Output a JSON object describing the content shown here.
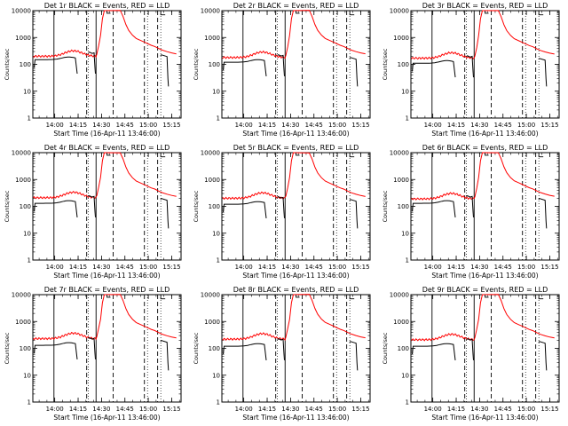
{
  "chart_data": [
    {
      "type": "line",
      "title": "Det 1r BLACK = Events, RED = LLD",
      "ylabel": "Counts/sec",
      "xlabel": "Start Time (16-Apr-11 13:46:00)",
      "red_base": 200,
      "black_base": 150,
      "black_gap": [
        14.25,
        14.45
      ],
      "ylim": [
        1,
        10000
      ],
      "yscale": "log",
      "xtick_labels": [
        "14:00",
        "14:15",
        "14:30",
        "14:45",
        "15:00",
        "15:15"
      ],
      "ytick_labels": [
        "1",
        "10",
        "100",
        "1000",
        "10000"
      ],
      "series": [
        {
          "name": "Events",
          "color": "#000000"
        },
        {
          "name": "LLD",
          "color": "#ff0000"
        }
      ]
    },
    {
      "type": "line",
      "title": "Det 2r BLACK = Events, RED = LLD",
      "ylabel": "Counts/sec",
      "xlabel": "Start Time (16-Apr-11 13:46:00)",
      "red_base": 180,
      "black_base": 120,
      "black_gap": [
        14.25,
        14.45
      ],
      "ylim": [
        1,
        10000
      ],
      "yscale": "log",
      "xtick_labels": [
        "14:00",
        "14:15",
        "14:30",
        "14:45",
        "15:00",
        "15:15"
      ],
      "ytick_labels": [
        "1",
        "10",
        "100",
        "1000",
        "10000"
      ],
      "series": [
        {
          "name": "Events",
          "color": "#000000"
        },
        {
          "name": "LLD",
          "color": "#ff0000"
        }
      ]
    },
    {
      "type": "line",
      "title": "Det 3r BLACK = Events, RED = LLD",
      "ylabel": "Counts/sec",
      "xlabel": "Start Time (16-Apr-11 13:46:00)",
      "red_base": 170,
      "black_base": 110,
      "black_gap": [
        14.25,
        14.45
      ],
      "ylim": [
        1,
        10000
      ],
      "yscale": "log",
      "xtick_labels": [
        "14:00",
        "14:15",
        "14:30",
        "14:45",
        "15:00",
        "15:15"
      ],
      "ytick_labels": [
        "1",
        "10",
        "100",
        "1000",
        "10000"
      ],
      "series": [
        {
          "name": "Events",
          "color": "#000000"
        },
        {
          "name": "LLD",
          "color": "#ff0000"
        }
      ]
    },
    {
      "type": "line",
      "title": "Det 4r BLACK = Events, RED = LLD",
      "ylabel": "Counts/sec",
      "xlabel": "Start Time (16-Apr-11 13:46:00)",
      "red_base": 210,
      "black_base": 130,
      "black_gap": [
        14.25,
        14.45
      ],
      "ylim": [
        1,
        10000
      ],
      "yscale": "log",
      "xtick_labels": [
        "14:00",
        "14:15",
        "14:30",
        "14:45",
        "15:00",
        "15:15"
      ],
      "ytick_labels": [
        "1",
        "10",
        "100",
        "1000",
        "10000"
      ],
      "series": [
        {
          "name": "Events",
          "color": "#000000"
        },
        {
          "name": "LLD",
          "color": "#ff0000"
        }
      ]
    },
    {
      "type": "line",
      "title": "Det 5r BLACK = Events, RED = LLD",
      "ylabel": "Counts/sec",
      "xlabel": "Start Time (16-Apr-11 13:46:00)",
      "red_base": 200,
      "black_base": 120,
      "black_gap": [
        14.25,
        14.45
      ],
      "ylim": [
        1,
        10000
      ],
      "yscale": "log",
      "xtick_labels": [
        "14:00",
        "14:15",
        "14:30",
        "14:45",
        "15:00",
        "15:15"
      ],
      "ytick_labels": [
        "1",
        "10",
        "100",
        "1000",
        "10000"
      ],
      "series": [
        {
          "name": "Events",
          "color": "#000000"
        },
        {
          "name": "LLD",
          "color": "#ff0000"
        }
      ]
    },
    {
      "type": "line",
      "title": "Det 6r BLACK = Events, RED = LLD",
      "ylabel": "Counts/sec",
      "xlabel": "Start Time (16-Apr-11 13:46:00)",
      "red_base": 190,
      "black_base": 130,
      "black_gap": [
        14.25,
        14.45
      ],
      "ylim": [
        1,
        10000
      ],
      "yscale": "log",
      "xtick_labels": [
        "14:00",
        "14:15",
        "14:30",
        "14:45",
        "15:00",
        "15:15"
      ],
      "ytick_labels": [
        "1",
        "10",
        "100",
        "1000",
        "10000"
      ],
      "series": [
        {
          "name": "Events",
          "color": "#000000"
        },
        {
          "name": "LLD",
          "color": "#ff0000"
        }
      ]
    },
    {
      "type": "line",
      "title": "Det 7r BLACK = Events, RED = LLD",
      "ylabel": "Counts/sec",
      "xlabel": "Start Time (16-Apr-11 13:46:00)",
      "red_base": 230,
      "black_base": 130,
      "black_gap": [
        14.25,
        14.45
      ],
      "ylim": [
        1,
        10000
      ],
      "yscale": "log",
      "xtick_labels": [
        "14:00",
        "14:15",
        "14:30",
        "14:45",
        "15:00",
        "15:15"
      ],
      "ytick_labels": [
        "1",
        "10",
        "100",
        "1000",
        "10000"
      ],
      "series": [
        {
          "name": "Events",
          "color": "#000000"
        },
        {
          "name": "LLD",
          "color": "#ff0000"
        }
      ]
    },
    {
      "type": "line",
      "title": "Det 8r BLACK = Events, RED = LLD",
      "ylabel": "Counts/sec",
      "xlabel": "Start Time (16-Apr-11 13:46:00)",
      "red_base": 220,
      "black_base": 120,
      "black_gap": [
        14.25,
        14.45
      ],
      "ylim": [
        1,
        10000
      ],
      "yscale": "log",
      "xtick_labels": [
        "14:00",
        "14:15",
        "14:30",
        "14:45",
        "15:00",
        "15:15"
      ],
      "ytick_labels": [
        "1",
        "10",
        "100",
        "1000",
        "10000"
      ],
      "series": [
        {
          "name": "Events",
          "color": "#000000"
        },
        {
          "name": "LLD",
          "color": "#ff0000"
        }
      ]
    },
    {
      "type": "line",
      "title": "Det 9r BLACK = Events, RED = LLD",
      "ylabel": "Counts/sec",
      "xlabel": "Start Time (16-Apr-11 13:46:00)",
      "red_base": 210,
      "black_base": 120,
      "black_gap": [
        14.25,
        14.45
      ],
      "ylim": [
        1,
        10000
      ],
      "yscale": "log",
      "xtick_labels": [
        "14:00",
        "14:15",
        "14:30",
        "14:45",
        "15:00",
        "15:15"
      ],
      "ytick_labels": [
        "1",
        "10",
        "100",
        "1000",
        "10000"
      ],
      "series": [
        {
          "name": "Events",
          "color": "#000000"
        },
        {
          "name": "LLD",
          "color": "#ff0000"
        }
      ]
    }
  ]
}
